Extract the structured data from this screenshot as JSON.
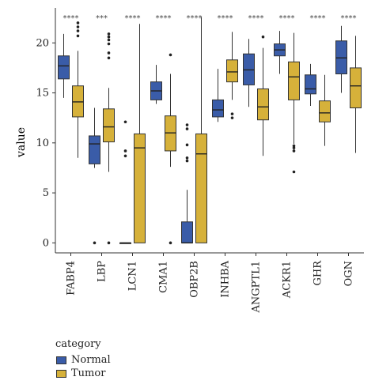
{
  "chart_data": {
    "type": "box",
    "ylabel": "value",
    "xlabel": "",
    "ylim": [
      -1,
      23.5
    ],
    "yticks": [
      0,
      5,
      10,
      15,
      20
    ],
    "categories": [
      "FABP4",
      "LBP",
      "LCN1",
      "CMA1",
      "OBP2B",
      "INHBA",
      "ANGPTL1",
      "ACKR1",
      "GHR",
      "OGN"
    ],
    "significance": [
      "****",
      "***",
      "****",
      "****",
      "****",
      "****",
      "****",
      "****",
      "****",
      "****"
    ],
    "legend": {
      "title": "category",
      "entries": [
        "Normal",
        "Tumor"
      ],
      "placement": "bottom-left"
    },
    "colors": {
      "Normal": "#3a5ca8",
      "Tumor": "#d6b13a"
    },
    "series": [
      {
        "name": "Normal",
        "boxes": [
          {
            "min": 14.5,
            "q1": 16.4,
            "median": 17.7,
            "q3": 18.7,
            "max": 20.9,
            "outliers": []
          },
          {
            "min": 7.5,
            "q1": 7.9,
            "median": 9.9,
            "q3": 10.7,
            "max": 13.5,
            "outliers": [
              0
            ]
          },
          {
            "min": 0,
            "q1": 0,
            "median": 0,
            "q3": 0,
            "max": 0,
            "outliers": [
              8.7,
              9.2,
              12.1
            ]
          },
          {
            "min": 13.9,
            "q1": 14.3,
            "median": 15.2,
            "q3": 16.1,
            "max": 17.8,
            "outliers": []
          },
          {
            "min": 0,
            "q1": 0,
            "median": 0,
            "q3": 2.1,
            "max": 5.3,
            "outliers": [
              8.2,
              8.5,
              9.8,
              11.4,
              11.8
            ]
          },
          {
            "min": 12.1,
            "q1": 12.6,
            "median": 13.3,
            "q3": 14.3,
            "max": 17.4,
            "outliers": []
          },
          {
            "min": 13.6,
            "q1": 15.8,
            "median": 17.3,
            "q3": 18.9,
            "max": 20.4,
            "outliers": []
          },
          {
            "min": 16.9,
            "q1": 18.7,
            "median": 19.3,
            "q3": 19.9,
            "max": 21.2,
            "outliers": []
          },
          {
            "min": 13.7,
            "q1": 14.9,
            "median": 15.4,
            "q3": 16.8,
            "max": 17.9,
            "outliers": []
          },
          {
            "min": 15.0,
            "q1": 16.9,
            "median": 18.5,
            "q3": 20.2,
            "max": 21.7,
            "outliers": []
          }
        ]
      },
      {
        "name": "Tumor",
        "boxes": [
          {
            "min": 8.5,
            "q1": 12.6,
            "median": 14.1,
            "q3": 15.7,
            "max": 19.2,
            "outliers": [
              20.7,
              21.2,
              21.6,
              22.0
            ]
          },
          {
            "min": 7.1,
            "q1": 10.1,
            "median": 11.6,
            "q3": 13.4,
            "max": 15.5,
            "outliers": [
              18.5,
              19.0,
              19.9,
              20.3,
              20.6,
              20.9,
              0
            ]
          },
          {
            "min": 0,
            "q1": 0,
            "median": 9.5,
            "q3": 10.9,
            "max": 21.9,
            "outliers": []
          },
          {
            "min": 7.6,
            "q1": 9.2,
            "median": 11.0,
            "q3": 12.7,
            "max": 16.9,
            "outliers": [
              18.8,
              0
            ]
          },
          {
            "min": 0,
            "q1": 0,
            "median": 8.9,
            "q3": 10.9,
            "max": 22.6,
            "outliers": []
          },
          {
            "min": 14.3,
            "q1": 16.1,
            "median": 17.1,
            "q3": 18.3,
            "max": 21.1,
            "outliers": [
              12.5,
              12.9
            ]
          },
          {
            "min": 8.7,
            "q1": 12.3,
            "median": 13.6,
            "q3": 15.4,
            "max": 19.5,
            "outliers": [
              20.6
            ]
          },
          {
            "min": 9.9,
            "q1": 14.3,
            "median": 16.6,
            "q3": 18.1,
            "max": 21.0,
            "outliers": [
              9.2,
              9.5,
              9.7,
              7.1
            ]
          },
          {
            "min": 9.7,
            "q1": 12.1,
            "median": 13.0,
            "q3": 14.2,
            "max": 16.8,
            "outliers": []
          },
          {
            "min": 9.0,
            "q1": 13.5,
            "median": 15.7,
            "q3": 17.5,
            "max": 20.7,
            "outliers": []
          }
        ]
      }
    ]
  }
}
